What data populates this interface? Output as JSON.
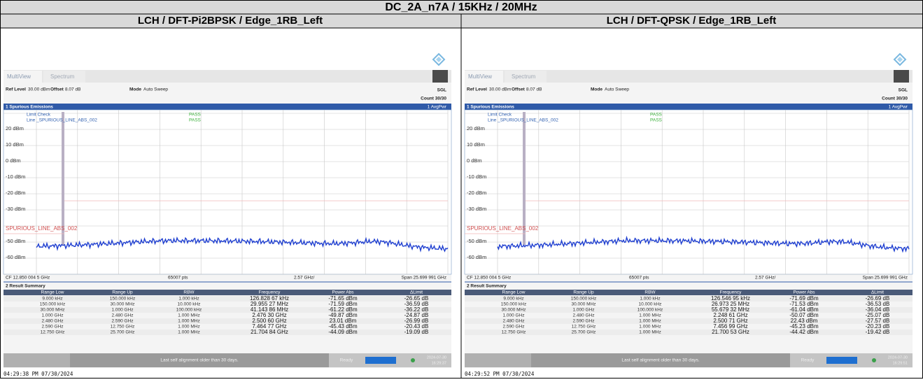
{
  "title": "DC_2A_n7A / 15KHz / 20MHz",
  "panels": [
    {
      "subtitle": "LCH / DFT-Pi2BPSK / Edge_1RB_Left",
      "tabs": [
        "MultiView",
        "Spectrum"
      ],
      "ref_level_label": "Ref Level",
      "ref_level": "30.00 dBm",
      "offset_label": "Offset",
      "offset": "8.07 dB",
      "mode_label": "Mode",
      "mode": "Auto Sweep",
      "sweep": "SGL",
      "count": "Count 30/30",
      "window_title": "1 Spurious Emissions",
      "trace_label": "1 AvgPwr",
      "limit_check": "Limit Check",
      "limit_check_result": "PASS",
      "limit_line": "Line _SPURIOUS_LINE_ABS_002",
      "limit_line_result": "PASS",
      "y_labels": [
        "20 dBm",
        "10 dBm",
        "0 dBm",
        "-10 dBm",
        "-20 dBm",
        "-30 dBm",
        "-50 dBm",
        "-60 dBm"
      ],
      "limit_line_label": "SPURIOUS_LINE_ABS_002",
      "center_freq": "CF 12.850 004 5 GHz",
      "points": "65007 pts",
      "per_division": "2.57 GHz/",
      "span": "Span 25.699 991 GHz",
      "summary_title": "2 Result Summary",
      "summary": {
        "columns": [
          "Range Low",
          "Range Up",
          "RBW",
          "Frequency",
          "Power Abs",
          "ΔLimit"
        ],
        "rows": [
          [
            "9.000 kHz",
            "150.000 kHz",
            "1.000 kHz",
            "126.828 67 kHz",
            "-71.65 dBm",
            "-26.65 dB"
          ],
          [
            "150.000 kHz",
            "30.000 MHz",
            "10.000 kHz",
            "29.955 27 MHz",
            "-71.59 dBm",
            "-36.59 dB"
          ],
          [
            "30.000 MHz",
            "1.000 GHz",
            "100.000 kHz",
            "41.143 86 MHz",
            "-61.22 dBm",
            "-36.22 dB"
          ],
          [
            "1.000 GHz",
            "2.480 GHz",
            "1.000 MHz",
            "2.476 30 GHz",
            "-49.87 dBm",
            "-24.87 dB"
          ],
          [
            "2.480 GHz",
            "2.590 GHz",
            "1.000 MHz",
            "2.500 60 GHz",
            "23.01 dBm",
            "-26.99 dB"
          ],
          [
            "2.590 GHz",
            "12.750 GHz",
            "1.000 MHz",
            "7.464 77 GHz",
            "-45.43 dBm",
            "-20.43 dB"
          ],
          [
            "12.750 GHz",
            "25.700 GHz",
            "1.000 MHz",
            "21.704 84 GHz",
            "-44.09 dBm",
            "-19.09 dB"
          ]
        ]
      },
      "status_message": "Last self alignment older than 30 days.",
      "status": "Ready",
      "date": "2024-07-30",
      "time": "16:29:37",
      "timestamp": "04:29:38 PM 07/30/2024"
    },
    {
      "subtitle": "LCH / DFT-QPSK / Edge_1RB_Left",
      "tabs": [
        "MultiView",
        "Spectrum"
      ],
      "ref_level_label": "Ref Level",
      "ref_level": "30.00 dBm",
      "offset_label": "Offset",
      "offset": "8.07 dB",
      "mode_label": "Mode",
      "mode": "Auto Sweep",
      "sweep": "SGL",
      "count": "Count 30/30",
      "window_title": "1 Spurious Emissions",
      "trace_label": "1 AvgPwr",
      "limit_check": "Limit Check",
      "limit_check_result": "PASS",
      "limit_line": "Line _SPURIOUS_LINE_ABS_002",
      "limit_line_result": "PASS",
      "y_labels": [
        "20 dBm",
        "10 dBm",
        "0 dBm",
        "-10 dBm",
        "-20 dBm",
        "-30 dBm",
        "-50 dBm",
        "-60 dBm"
      ],
      "limit_line_label": "SPURIOUS_LINE_ABS_002",
      "center_freq": "CF 12.850 004 5 GHz",
      "points": "65007 pts",
      "per_division": "2.57 GHz/",
      "span": "Span 25.699 991 GHz",
      "summary_title": "2 Result Summary",
      "summary": {
        "columns": [
          "Range Low",
          "Range Up",
          "RBW",
          "Frequency",
          "Power Abs",
          "ΔLimit"
        ],
        "rows": [
          [
            "9.000 kHz",
            "150.000 kHz",
            "1.000 kHz",
            "126.546 95 kHz",
            "-71.69 dBm",
            "-26.69 dB"
          ],
          [
            "150.000 kHz",
            "30.000 MHz",
            "10.000 kHz",
            "26.973 25 MHz",
            "-71.53 dBm",
            "-36.53 dB"
          ],
          [
            "30.000 MHz",
            "1.000 GHz",
            "100.000 kHz",
            "55.679 32 MHz",
            "-61.04 dBm",
            "-36.04 dB"
          ],
          [
            "1.000 GHz",
            "2.480 GHz",
            "1.000 MHz",
            "2.248 61 GHz",
            "-50.07 dBm",
            "-25.07 dB"
          ],
          [
            "2.480 GHz",
            "2.590 GHz",
            "1.000 MHz",
            "2.500 71 GHz",
            "22.43 dBm",
            "-27.57 dB"
          ],
          [
            "2.590 GHz",
            "12.750 GHz",
            "1.000 MHz",
            "7.456 99 GHz",
            "-45.23 dBm",
            "-20.23 dB"
          ],
          [
            "12.750 GHz",
            "25.700 GHz",
            "1.000 MHz",
            "21.700 53 GHz",
            "-44.42 dBm",
            "-19.42 dB"
          ]
        ]
      },
      "status_message": "Last self alignment older than 30 days.",
      "status": "Ready",
      "date": "2024-07-30",
      "time": "16:29:51",
      "timestamp": "04:29:52 PM 07/30/2024"
    }
  ]
}
